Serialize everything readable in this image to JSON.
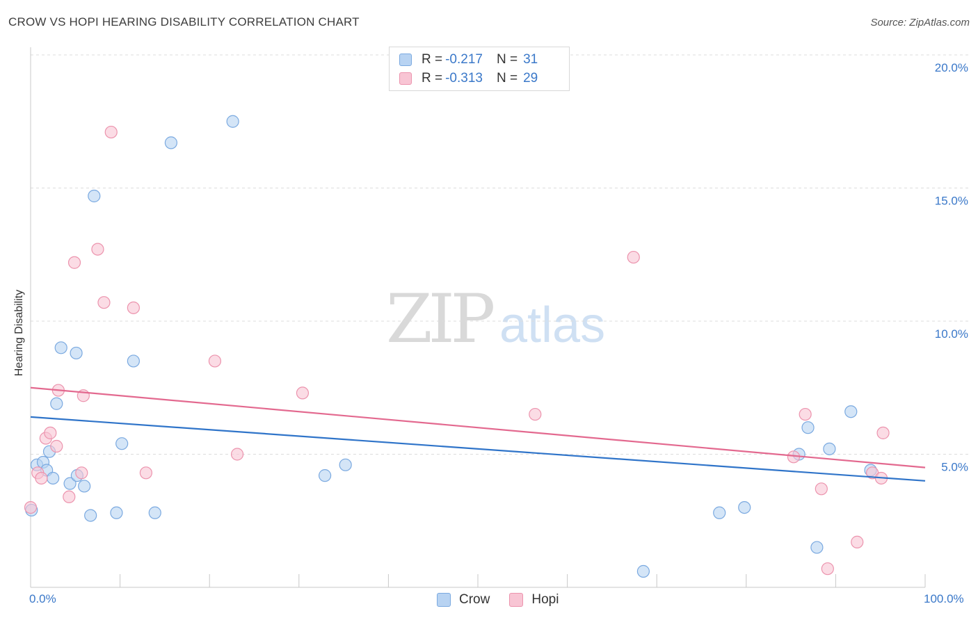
{
  "title": "CROW VS HOPI HEARING DISABILITY CORRELATION CHART",
  "source": "Source: ZipAtlas.com",
  "colors": {
    "crow_fill": "#b8d3f2",
    "crow_stroke": "#7aa9e0",
    "crow_line": "#2f74c9",
    "hopi_fill": "#f8c5d4",
    "hopi_stroke": "#ec93ad",
    "hopi_line": "#e3698f",
    "tick_text": "#3a78c9",
    "grid": "#dcdcdc"
  },
  "legend": {
    "crow": {
      "r_label": "R = ",
      "r_value": "-0.217",
      "n_label": "N = ",
      "n_value": "31"
    },
    "hopi": {
      "r_label": "R = ",
      "r_value": "-0.313",
      "n_label": "N = ",
      "n_value": "29"
    }
  },
  "chart_data": {
    "type": "scatter",
    "title": "CROW VS HOPI HEARING DISABILITY CORRELATION CHART",
    "xlabel": "",
    "ylabel": "Hearing Disability",
    "xlim": [
      0,
      100
    ],
    "ylim": [
      0,
      20
    ],
    "x_tick_labels": [
      "0.0%",
      "100.0%"
    ],
    "y_ticks": [
      5,
      10,
      15,
      20
    ],
    "y_tick_labels": [
      "5.0%",
      "10.0%",
      "15.0%",
      "20.0%"
    ],
    "grid": "horizontal dashed",
    "legend_position": "top-center and bottom",
    "watermark": "ZIPatlas",
    "series": [
      {
        "name": "Crow",
        "trend": {
          "x": [
            0,
            100
          ],
          "y": [
            6.4,
            4.0
          ]
        },
        "points": [
          {
            "x": 0.1,
            "y": 2.9
          },
          {
            "x": 0.7,
            "y": 4.6
          },
          {
            "x": 1.4,
            "y": 4.7
          },
          {
            "x": 1.8,
            "y": 4.4
          },
          {
            "x": 2.1,
            "y": 5.1
          },
          {
            "x": 2.5,
            "y": 4.1
          },
          {
            "x": 2.9,
            "y": 6.9
          },
          {
            "x": 3.4,
            "y": 9.0
          },
          {
            "x": 4.4,
            "y": 3.9
          },
          {
            "x": 5.1,
            "y": 8.8
          },
          {
            "x": 5.2,
            "y": 4.2
          },
          {
            "x": 6.0,
            "y": 3.8
          },
          {
            "x": 6.7,
            "y": 2.7
          },
          {
            "x": 7.1,
            "y": 14.7
          },
          {
            "x": 9.6,
            "y": 2.8
          },
          {
            "x": 10.2,
            "y": 5.4
          },
          {
            "x": 11.5,
            "y": 8.5
          },
          {
            "x": 13.9,
            "y": 2.8
          },
          {
            "x": 15.7,
            "y": 16.7
          },
          {
            "x": 22.6,
            "y": 17.5
          },
          {
            "x": 32.9,
            "y": 4.2
          },
          {
            "x": 35.2,
            "y": 4.6
          },
          {
            "x": 68.5,
            "y": 0.6
          },
          {
            "x": 77.0,
            "y": 2.8
          },
          {
            "x": 79.8,
            "y": 3.0
          },
          {
            "x": 85.9,
            "y": 5.0
          },
          {
            "x": 86.9,
            "y": 6.0
          },
          {
            "x": 87.9,
            "y": 1.5
          },
          {
            "x": 89.3,
            "y": 5.2
          },
          {
            "x": 91.7,
            "y": 6.6
          },
          {
            "x": 93.9,
            "y": 4.4
          }
        ]
      },
      {
        "name": "Hopi",
        "trend": {
          "x": [
            0,
            100
          ],
          "y": [
            7.5,
            4.5
          ]
        },
        "points": [
          {
            "x": 0.0,
            "y": 3.0
          },
          {
            "x": 0.8,
            "y": 4.3
          },
          {
            "x": 1.2,
            "y": 4.1
          },
          {
            "x": 1.7,
            "y": 5.6
          },
          {
            "x": 2.2,
            "y": 5.8
          },
          {
            "x": 2.9,
            "y": 5.3
          },
          {
            "x": 3.1,
            "y": 7.4
          },
          {
            "x": 4.3,
            "y": 3.4
          },
          {
            "x": 4.9,
            "y": 12.2
          },
          {
            "x": 5.7,
            "y": 4.3
          },
          {
            "x": 5.9,
            "y": 7.2
          },
          {
            "x": 7.5,
            "y": 12.7
          },
          {
            "x": 8.2,
            "y": 10.7
          },
          {
            "x": 9.0,
            "y": 17.1
          },
          {
            "x": 11.5,
            "y": 10.5
          },
          {
            "x": 12.9,
            "y": 4.3
          },
          {
            "x": 20.6,
            "y": 8.5
          },
          {
            "x": 23.1,
            "y": 5.0
          },
          {
            "x": 30.4,
            "y": 7.3
          },
          {
            "x": 56.4,
            "y": 6.5
          },
          {
            "x": 67.4,
            "y": 12.4
          },
          {
            "x": 85.3,
            "y": 4.9
          },
          {
            "x": 86.6,
            "y": 6.5
          },
          {
            "x": 88.4,
            "y": 3.7
          },
          {
            "x": 89.1,
            "y": 0.7
          },
          {
            "x": 92.4,
            "y": 1.7
          },
          {
            "x": 94.1,
            "y": 4.3
          },
          {
            "x": 95.1,
            "y": 4.1
          },
          {
            "x": 95.3,
            "y": 5.8
          }
        ]
      }
    ]
  }
}
